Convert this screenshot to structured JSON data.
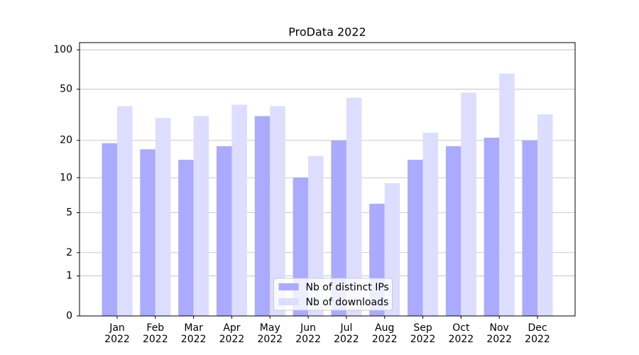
{
  "chart_data": {
    "type": "bar",
    "title": "ProData 2022",
    "categories": [
      "Jan\n2022",
      "Feb\n2022",
      "Mar\n2022",
      "Apr\n2022",
      "May\n2022",
      "Jun\n2022",
      "Jul\n2022",
      "Aug\n2022",
      "Sep\n2022",
      "Oct\n2022",
      "Nov\n2022",
      "Dec\n2022"
    ],
    "series": [
      {
        "name": "Nb of distinct IPs",
        "color": "#aaaaff",
        "values": [
          19,
          17,
          14,
          18,
          31,
          10,
          20,
          6,
          14,
          18,
          21,
          20
        ]
      },
      {
        "name": "Nb of downloads",
        "color": "#ddddff",
        "values": [
          37,
          30,
          31,
          38,
          37,
          15,
          43,
          9,
          23,
          47,
          66,
          32
        ]
      }
    ],
    "yscale": "log1p",
    "ylim": [
      0,
      113.5
    ],
    "yticks": [
      0,
      1,
      2,
      5,
      10,
      20,
      50,
      100
    ],
    "grid": true,
    "legend": "lower center"
  }
}
